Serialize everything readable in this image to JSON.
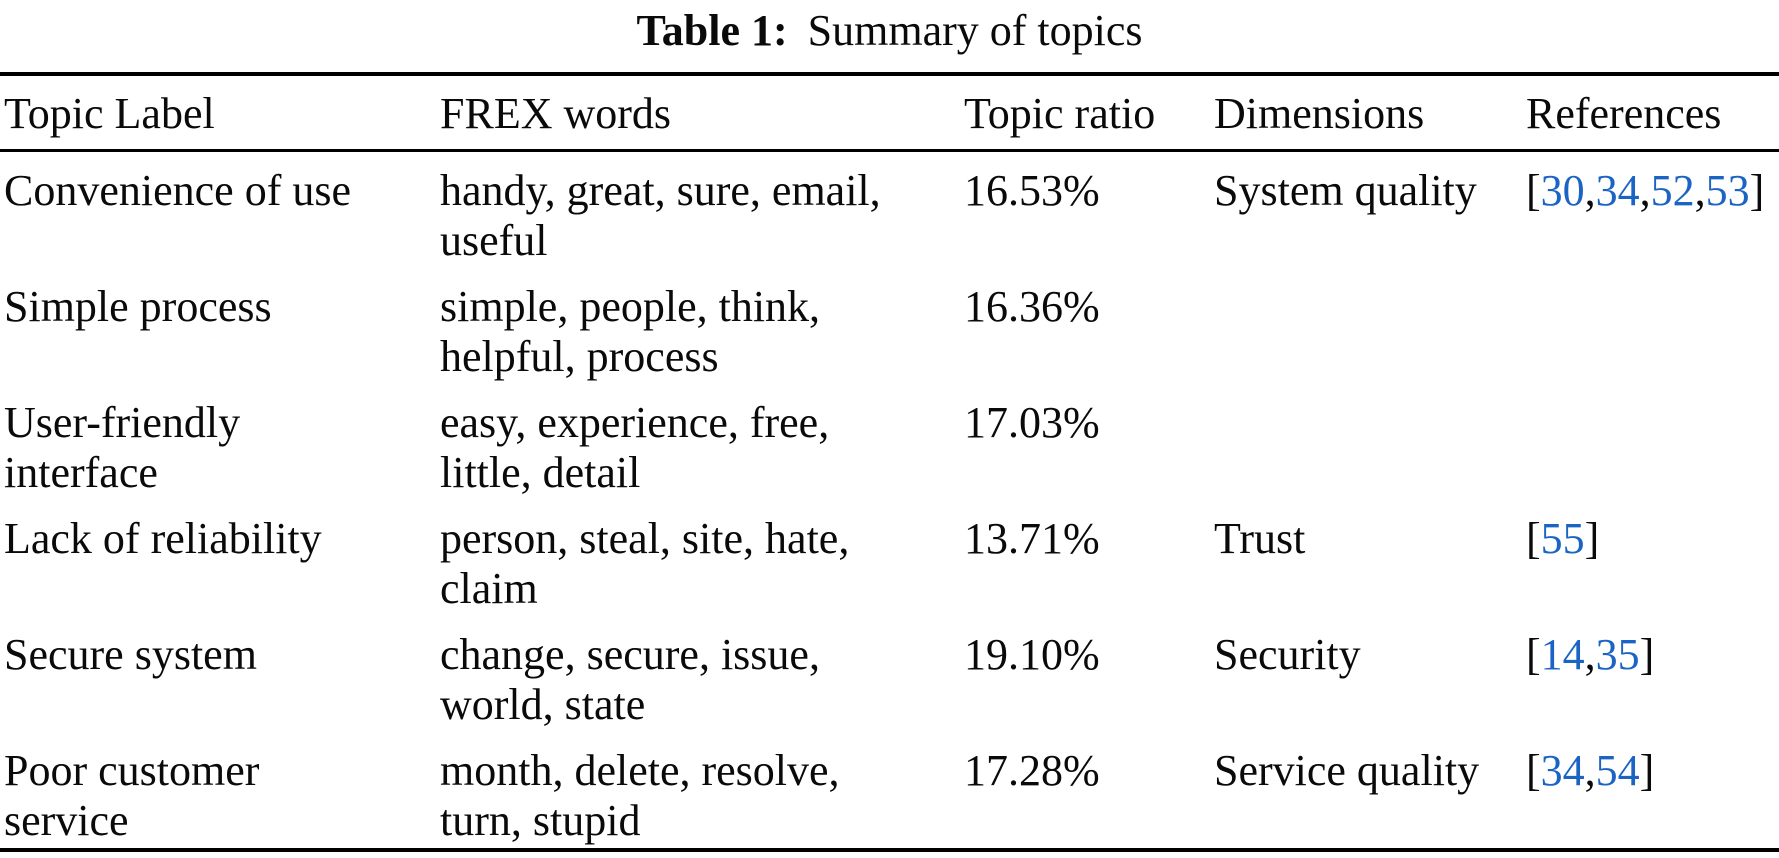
{
  "caption": {
    "label": "Table 1:",
    "text": "Summary of topics"
  },
  "table": {
    "columns": [
      "Topic Label",
      "FREX words",
      "Topic ratio",
      "Dimensions",
      "References"
    ],
    "citation_format": {
      "open": "[",
      "separator": ",",
      "close": "]"
    },
    "rows": [
      {
        "topic_label_lines": [
          "Convenience of use"
        ],
        "frex_lines": [
          "handy, great, sure, email,",
          "useful"
        ],
        "topic_ratio": "16.53%",
        "dimension": "System quality",
        "references": [
          "30",
          "34",
          "52",
          "53"
        ]
      },
      {
        "topic_label_lines": [
          "Simple process"
        ],
        "frex_lines": [
          "simple, people, think,",
          "helpful, process"
        ],
        "topic_ratio": "16.36%",
        "dimension": "",
        "references": []
      },
      {
        "topic_label_lines": [
          "User-friendly",
          "interface"
        ],
        "frex_lines": [
          "easy, experience, free,",
          "little, detail"
        ],
        "topic_ratio": "17.03%",
        "dimension": "",
        "references": []
      },
      {
        "topic_label_lines": [
          "Lack of reliability"
        ],
        "frex_lines": [
          "person, steal, site, hate,",
          "claim"
        ],
        "topic_ratio": "13.71%",
        "dimension": "Trust",
        "references": [
          "55"
        ]
      },
      {
        "topic_label_lines": [
          "Secure system"
        ],
        "frex_lines": [
          "change, secure, issue,",
          "world, state"
        ],
        "topic_ratio": "19.10%",
        "dimension": "Security",
        "references": [
          "14",
          "35"
        ]
      },
      {
        "topic_label_lines": [
          "Poor customer",
          "service"
        ],
        "frex_lines": [
          "month, delete, resolve,",
          "turn, stupid"
        ],
        "topic_ratio": "17.28%",
        "dimension": "Service quality",
        "references": [
          "34",
          "54"
        ]
      }
    ]
  },
  "colors": {
    "text": "#0a0a0a",
    "citation_link": "#1c64c4",
    "rule": "#000000"
  }
}
